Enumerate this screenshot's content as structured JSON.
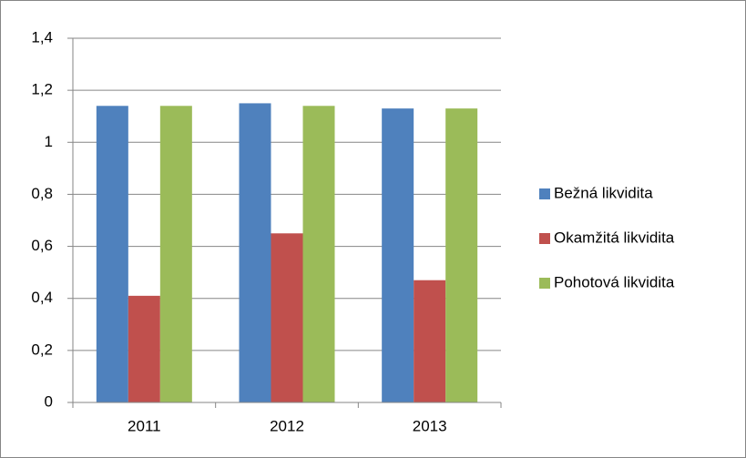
{
  "chart_data": {
    "type": "bar",
    "categories": [
      "2011",
      "2012",
      "2013"
    ],
    "series": [
      {
        "name": "Bežná likvidita",
        "color": "#4f81bd",
        "values": [
          1.14,
          1.15,
          1.13
        ]
      },
      {
        "name": "Okamžitá likvidita",
        "color": "#c0504d",
        "values": [
          0.41,
          0.65,
          0.47
        ]
      },
      {
        "name": "Pohotová likvidita",
        "color": "#9bbb59",
        "values": [
          1.14,
          1.14,
          1.13
        ]
      }
    ],
    "ylim": [
      0,
      1.4
    ],
    "yticks": [
      0,
      {
        "value": 0.2,
        "label": "0,2"
      },
      {
        "value": 0.4,
        "label": "0,4"
      },
      {
        "value": 0.6,
        "label": "0,6"
      },
      {
        "value": 0.8,
        "label": "0,8"
      },
      1,
      {
        "value": 1.2,
        "label": "1,2"
      },
      {
        "value": 1.4,
        "label": "1,4"
      }
    ],
    "grid": true,
    "legend": "right"
  }
}
